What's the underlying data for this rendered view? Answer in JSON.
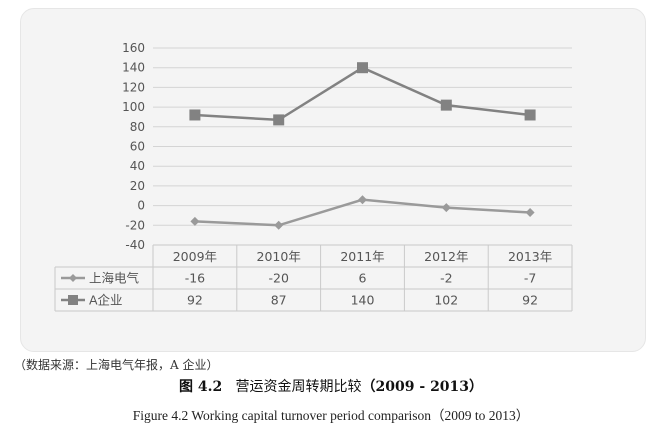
{
  "chart_data": {
    "type": "line",
    "categories": [
      "2009年",
      "2010年",
      "2011年",
      "2012年",
      "2013年"
    ],
    "series": [
      {
        "name": "上海电气",
        "values": [
          -16,
          -20,
          6,
          -2,
          -7
        ],
        "color": "#9a9a9a",
        "marker": "diamond"
      },
      {
        "name": "A企业",
        "values": [
          92,
          87,
          140,
          102,
          92
        ],
        "color": "#828282",
        "marker": "square"
      }
    ],
    "ylim": [
      -40,
      160
    ],
    "yticks": [
      -40,
      -20,
      0,
      20,
      40,
      60,
      80,
      100,
      120,
      140,
      160
    ],
    "grid": true,
    "legend": "data-table-below",
    "data_table": true
  },
  "captions": {
    "source": "（数据来源：上海电气年报，A 企业）",
    "cn_figure_no": "图 4.2",
    "cn_title": "营运资金周转期比较",
    "cn_years": "（2009 - 2013）",
    "en": "Figure 4.2    Working capital turnover period comparison（2009 to 2013）"
  }
}
